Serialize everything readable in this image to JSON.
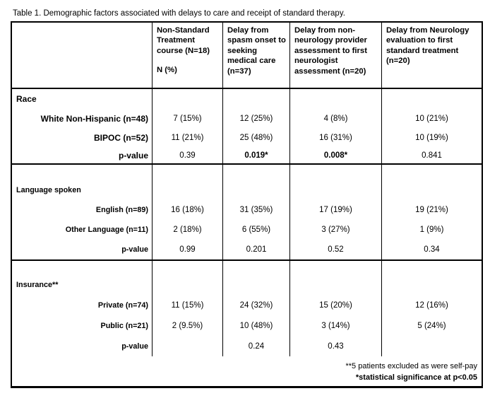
{
  "title": "Table 1. Demographic factors associated with delays to care and receipt of standard therapy.",
  "table": {
    "header": {
      "col0": "",
      "col1_title": "Non-Standard Treatment course  (N=18)",
      "col1_sub": "N (%)",
      "col2": "Delay from spasm onset to seeking medical care (n=37)",
      "col3": "Delay from non-neurology provider assessment to first neurologist assessment (n=20)",
      "col4": "Delay from Neurology evaluation to first standard treatment (n=20)"
    },
    "sections": [
      {
        "label": "Race",
        "rows": [
          {
            "label": "White Non-Hispanic (n=48)",
            "values": [
              "7 (15%)",
              "12 (25%)",
              "4 (8%)",
              "10 (21%)"
            ]
          },
          {
            "label": "BIPOC (n=52)",
            "values": [
              "11 (21%)",
              "25 (48%)",
              "16 (31%)",
              "10 (19%)"
            ]
          },
          {
            "label": "p-value",
            "values": [
              "0.39",
              "0.019*",
              "0.008*",
              "0.841"
            ]
          }
        ]
      },
      {
        "label": "Language spoken",
        "rows": [
          {
            "label": "English (n=89)",
            "values": [
              "16 (18%)",
              "31 (35%)",
              "17 (19%)",
              "19 (21%)"
            ]
          },
          {
            "label": "Other Language (n=11)",
            "values": [
              "2 (18%)",
              "6 (55%)",
              "3 (27%)",
              "1 (9%)"
            ]
          },
          {
            "label": "p-value",
            "values": [
              "0.99",
              "0.201",
              "0.52",
              "0.34"
            ]
          }
        ]
      },
      {
        "label": "Insurance**",
        "rows": [
          {
            "label": "Private (n=74)",
            "values": [
              "11 (15%)",
              "24 (32%)",
              "15 (20%)",
              "12 (16%)"
            ]
          },
          {
            "label": "Public (n=21)",
            "values": [
              "2 (9.5%)",
              "10 (48%)",
              "3 (14%)",
              "5 (24%)"
            ]
          },
          {
            "label": "p-value",
            "values": [
              "",
              "0.24",
              "0.43",
              ""
            ]
          }
        ]
      }
    ],
    "footnotes": [
      "**5 patients excluded as were self-pay",
      "*statistical significance at p<0.05"
    ]
  }
}
